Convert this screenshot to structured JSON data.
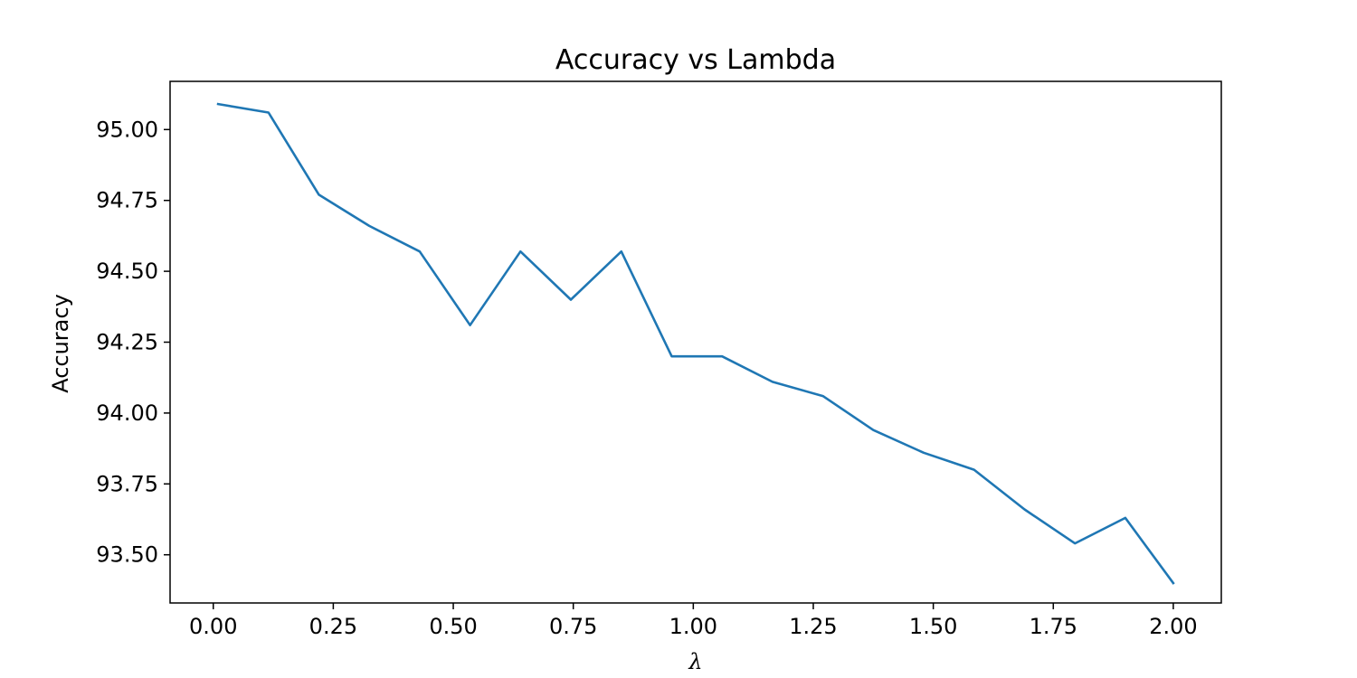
{
  "chart_data": {
    "type": "line",
    "title": "Accuracy vs Lambda",
    "xlabel": "λ",
    "ylabel": "Accuracy",
    "xlim": [
      -0.09,
      2.1
    ],
    "ylim": [
      93.33,
      95.17
    ],
    "xticks": [
      0.0,
      0.25,
      0.5,
      0.75,
      1.0,
      1.25,
      1.5,
      1.75,
      2.0
    ],
    "xtick_labels": [
      "0.00",
      "0.25",
      "0.50",
      "0.75",
      "1.00",
      "1.25",
      "1.50",
      "1.75",
      "2.00"
    ],
    "yticks": [
      93.5,
      93.75,
      94.0,
      94.25,
      94.5,
      94.75,
      95.0
    ],
    "ytick_labels": [
      "93.50",
      "93.75",
      "94.00",
      "94.25",
      "94.50",
      "94.75",
      "95.00"
    ],
    "grid": false,
    "legend": "none",
    "series": [
      {
        "color": "#1f77b4",
        "x": [
          0.01,
          0.115,
          0.22,
          0.325,
          0.43,
          0.535,
          0.64,
          0.745,
          0.85,
          0.955,
          1.06,
          1.165,
          1.27,
          1.375,
          1.48,
          1.585,
          1.69,
          1.795,
          1.9,
          2.0
        ],
        "y": [
          95.09,
          95.06,
          94.77,
          94.66,
          94.57,
          94.31,
          94.57,
          94.4,
          94.57,
          94.2,
          94.2,
          94.11,
          94.06,
          93.94,
          93.86,
          93.8,
          93.66,
          93.54,
          93.63,
          93.4
        ]
      }
    ]
  }
}
